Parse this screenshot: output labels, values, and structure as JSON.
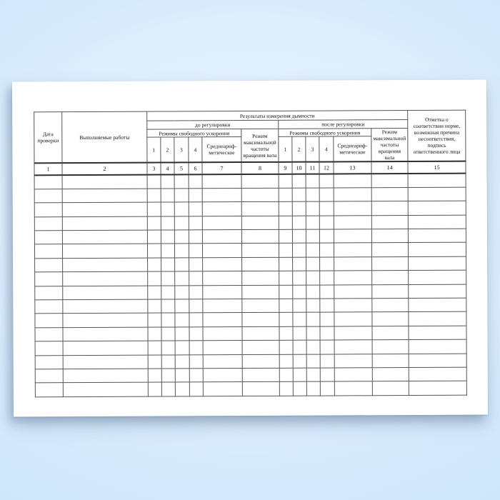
{
  "scene": {
    "background_color": "#d4e9fc",
    "paper_color": "#ffffff",
    "grid_color": "#565656",
    "text_color": "#111111"
  },
  "document": {
    "table": {
      "header": {
        "date_col": "Дата проверки",
        "works_col": "Выполняемые работы",
        "results_title": "Результаты измерения дымности",
        "before_adjustment": "до регулировки",
        "after_adjustment": "после регулировки",
        "free_accel_modes": "Режимы свободного ускорения",
        "mode_numbers": [
          "1",
          "2",
          "3",
          "4"
        ],
        "average": "Среднеариф-метическое",
        "max_shaft_speed": "Режим максимальной частоты вращения вала",
        "note_col": "Отметка о соответствии норме, возможная причина несоответствия, подпись ответственного лица"
      },
      "column_numbers": [
        "1",
        "2",
        "3",
        "4",
        "5",
        "6",
        "7",
        "8",
        "9",
        "10",
        "11",
        "12",
        "13",
        "14",
        "15"
      ],
      "columns_per_row": 15,
      "empty_row_count": 16
    }
  }
}
